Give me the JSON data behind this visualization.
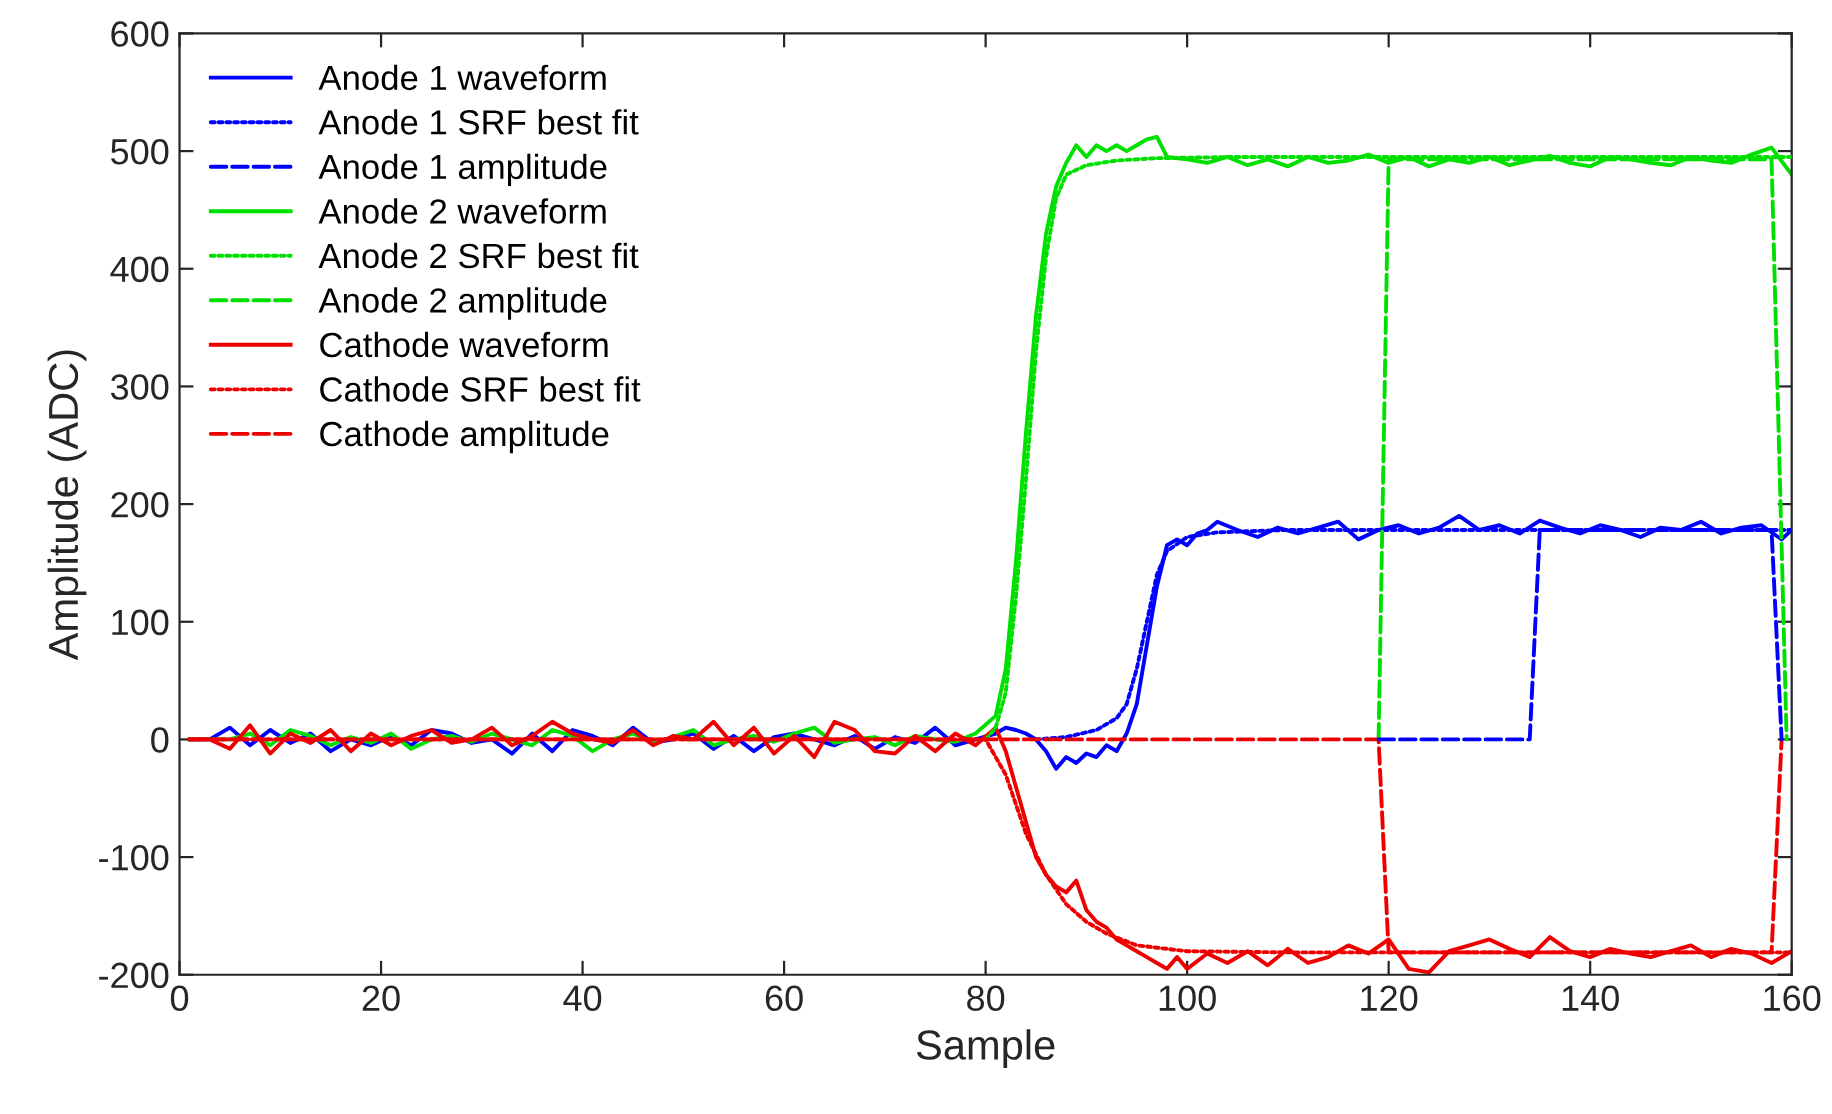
{
  "chart_data": {
    "type": "line",
    "xlabel": "Sample",
    "ylabel": "Amplitude (ADC)",
    "xlim": [
      0,
      160
    ],
    "ylim": [
      -200,
      600
    ],
    "xticks": [
      0,
      20,
      40,
      60,
      80,
      100,
      120,
      140,
      160
    ],
    "yticks": [
      -200,
      -100,
      0,
      100,
      200,
      300,
      400,
      500,
      600
    ],
    "legend": "top left",
    "grid": false,
    "series": [
      {
        "name": "Anode 1 waveform",
        "color": "#0000ff",
        "line_style": "solid",
        "x": [
          1,
          3,
          5,
          7,
          9,
          11,
          13,
          15,
          17,
          19,
          21,
          23,
          25,
          27,
          29,
          31,
          33,
          35,
          37,
          39,
          41,
          43,
          45,
          47,
          49,
          51,
          53,
          55,
          57,
          59,
          61,
          63,
          65,
          67,
          69,
          71,
          73,
          75,
          77,
          79,
          81,
          82,
          83,
          84,
          85,
          86,
          87,
          88,
          89,
          90,
          91,
          92,
          93,
          94,
          95,
          96,
          97,
          98,
          99,
          100,
          101,
          102,
          103,
          105,
          107,
          109,
          111,
          113,
          115,
          117,
          119,
          121,
          123,
          125,
          127,
          129,
          131,
          133,
          135,
          137,
          139,
          141,
          143,
          145,
          147,
          149,
          151,
          153,
          155,
          157,
          159,
          160
        ],
        "values": [
          0,
          0,
          10,
          -5,
          8,
          -3,
          5,
          -10,
          0,
          -5,
          3,
          -5,
          8,
          5,
          -3,
          0,
          -12,
          5,
          -10,
          8,
          3,
          -5,
          10,
          -3,
          0,
          5,
          -8,
          3,
          -10,
          2,
          5,
          0,
          -5,
          3,
          -8,
          2,
          -3,
          10,
          -5,
          0,
          5,
          10,
          8,
          5,
          0,
          -10,
          -25,
          -15,
          -20,
          -12,
          -15,
          -5,
          -10,
          5,
          30,
          80,
          130,
          165,
          170,
          165,
          175,
          178,
          185,
          178,
          172,
          180,
          175,
          180,
          185,
          170,
          178,
          182,
          175,
          180,
          190,
          178,
          182,
          175,
          186,
          180,
          175,
          182,
          178,
          172,
          180,
          178,
          185,
          175,
          180,
          182,
          170,
          178
        ]
      },
      {
        "name": "Anode 1 SRF best fit",
        "color": "#0000ff",
        "line_style": "dotted",
        "x": [
          85,
          88,
          91,
          93,
          94,
          95,
          96,
          97,
          98,
          100,
          103,
          110,
          160
        ],
        "values": [
          0,
          2,
          8,
          18,
          30,
          60,
          100,
          140,
          160,
          172,
          176,
          178,
          178
        ]
      },
      {
        "name": "Anode 1 amplitude",
        "color": "#0000ff",
        "line_style": "dashed",
        "x": [
          119,
          134,
          135,
          158,
          159
        ],
        "values": [
          0,
          0,
          178,
          178,
          0
        ]
      },
      {
        "name": "Anode 2 waveform",
        "color": "#00e000",
        "line_style": "solid",
        "x": [
          1,
          3,
          5,
          7,
          9,
          11,
          13,
          15,
          17,
          19,
          21,
          23,
          25,
          27,
          29,
          31,
          33,
          35,
          37,
          39,
          41,
          43,
          45,
          47,
          49,
          51,
          53,
          55,
          57,
          59,
          61,
          63,
          65,
          67,
          69,
          71,
          73,
          75,
          77,
          79,
          81,
          82,
          83,
          84,
          85,
          86,
          87,
          88,
          89,
          90,
          91,
          92,
          93,
          94,
          95,
          96,
          97,
          98,
          100,
          102,
          104,
          106,
          108,
          110,
          112,
          114,
          116,
          118,
          120,
          122,
          124,
          126,
          128,
          130,
          132,
          134,
          136,
          138,
          140,
          142,
          144,
          146,
          148,
          150,
          152,
          154,
          156,
          158,
          160
        ],
        "values": [
          0,
          0,
          0,
          5,
          -5,
          8,
          3,
          -5,
          2,
          -3,
          5,
          -8,
          0,
          3,
          -2,
          5,
          0,
          -5,
          8,
          3,
          -10,
          0,
          5,
          -3,
          2,
          8,
          -5,
          0,
          3,
          -2,
          5,
          10,
          -3,
          0,
          2,
          -5,
          3,
          0,
          -2,
          5,
          20,
          60,
          150,
          260,
          360,
          430,
          470,
          490,
          505,
          495,
          505,
          500,
          505,
          500,
          505,
          510,
          512,
          495,
          493,
          490,
          495,
          488,
          493,
          487,
          495,
          490,
          492,
          497,
          490,
          495,
          487,
          493,
          490,
          495,
          488,
          492,
          496,
          490,
          487,
          495,
          493,
          490,
          488,
          495,
          492,
          490,
          497,
          503,
          480
        ]
      },
      {
        "name": "Anode 2 SRF best fit",
        "color": "#00e000",
        "line_style": "dotted",
        "x": [
          80,
          81,
          82,
          83,
          84,
          85,
          86,
          87,
          88,
          90,
          93,
          97,
          105,
          160
        ],
        "values": [
          0,
          10,
          40,
          120,
          220,
          330,
          410,
          460,
          480,
          488,
          492,
          494,
          495,
          495
        ]
      },
      {
        "name": "Anode 2 amplitude",
        "color": "#00e000",
        "line_style": "dashed",
        "x": [
          119,
          120,
          158,
          159.5
        ],
        "values": [
          0,
          493,
          493,
          0
        ]
      },
      {
        "name": "Cathode waveform",
        "color": "#ee0000",
        "line_style": "solid",
        "x": [
          1,
          3,
          5,
          7,
          9,
          11,
          13,
          15,
          17,
          19,
          21,
          23,
          25,
          27,
          29,
          31,
          33,
          35,
          37,
          39,
          41,
          43,
          45,
          47,
          49,
          51,
          53,
          55,
          57,
          59,
          61,
          63,
          65,
          67,
          69,
          71,
          73,
          75,
          77,
          79,
          81,
          82,
          83,
          84,
          85,
          86,
          87,
          88,
          89,
          90,
          91,
          92,
          93,
          94,
          95,
          96,
          97,
          98,
          99,
          100,
          102,
          104,
          106,
          108,
          110,
          112,
          114,
          116,
          118,
          120,
          122,
          124,
          126,
          128,
          130,
          132,
          134,
          136,
          138,
          140,
          142,
          144,
          146,
          148,
          150,
          152,
          154,
          156,
          158,
          160
        ],
        "values": [
          0,
          0,
          -8,
          12,
          -12,
          5,
          -3,
          8,
          -10,
          5,
          -5,
          3,
          8,
          -3,
          0,
          10,
          -5,
          3,
          15,
          5,
          0,
          -3,
          8,
          -5,
          3,
          0,
          15,
          -5,
          10,
          -12,
          3,
          -15,
          15,
          8,
          -10,
          -12,
          3,
          -10,
          5,
          -5,
          10,
          -10,
          -40,
          -70,
          -100,
          -115,
          -125,
          -130,
          -120,
          -145,
          -155,
          -160,
          -170,
          -175,
          -180,
          -185,
          -190,
          -195,
          -185,
          -195,
          -182,
          -190,
          -180,
          -192,
          -178,
          -190,
          -185,
          -175,
          -182,
          -170,
          -195,
          -198,
          -180,
          -175,
          -170,
          -178,
          -185,
          -168,
          -180,
          -185,
          -178,
          -182,
          -185,
          -180,
          -175,
          -185,
          -178,
          -182,
          -190,
          -180
        ]
      },
      {
        "name": "Cathode SRF best fit",
        "color": "#ee0000",
        "line_style": "dotted",
        "x": [
          1,
          80,
          82,
          84,
          86,
          88,
          90,
          92,
          95,
          100,
          110,
          160
        ],
        "values": [
          0,
          0,
          -30,
          -80,
          -115,
          -140,
          -155,
          -165,
          -175,
          -180,
          -181,
          -181
        ]
      },
      {
        "name": "Cathode amplitude",
        "color": "#ee0000",
        "line_style": "dashed",
        "x": [
          1,
          119,
          120,
          158,
          159
        ],
        "values": [
          0,
          0,
          -181,
          -181,
          0
        ]
      }
    ]
  }
}
